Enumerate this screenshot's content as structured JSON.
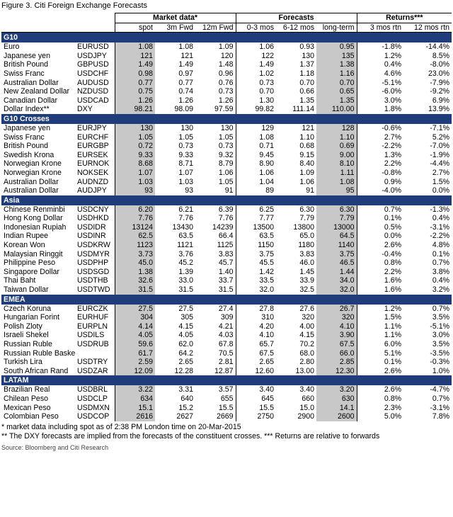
{
  "title": "Figure 3. Citi Foreign Exchange Forecasts",
  "header": {
    "groups": [
      "Market data*",
      "Forecasts",
      "Returns***"
    ],
    "columns": [
      "spot",
      "3m Fwd",
      "12m Fwd",
      "0-3 mos",
      "6-12 mos",
      "long-term",
      "3 mos rtn",
      "12 mos rtn"
    ]
  },
  "sections": [
    {
      "name": "G10",
      "rows": [
        [
          "Euro",
          "EURUSD",
          "1.08",
          "1.08",
          "1.09",
          "1.06",
          "0.93",
          "0.95",
          "-1.8%",
          "-14.4%"
        ],
        [
          "Japanese yen",
          "USDJPY",
          "121",
          "121",
          "120",
          "122",
          "130",
          "135",
          "1.2%",
          "8.5%"
        ],
        [
          "British Pound",
          "GBPUSD",
          "1.49",
          "1.49",
          "1.48",
          "1.49",
          "1.37",
          "1.38",
          "0.4%",
          "-8.0%"
        ],
        [
          "Swiss Franc",
          "USDCHF",
          "0.98",
          "0.97",
          "0.96",
          "1.02",
          "1.18",
          "1.16",
          "4.6%",
          "23.0%"
        ],
        [
          "Australian Dollar",
          "AUDUSD",
          "0.77",
          "0.77",
          "0.76",
          "0.73",
          "0.70",
          "0.70",
          "-5.1%",
          "-7.9%"
        ],
        [
          "New Zealand Dollar",
          "NZDUSD",
          "0.75",
          "0.74",
          "0.73",
          "0.70",
          "0.66",
          "0.65",
          "-6.0%",
          "-9.2%"
        ],
        [
          "Canadian Dollar",
          "USDCAD",
          "1.26",
          "1.26",
          "1.26",
          "1.30",
          "1.35",
          "1.35",
          "3.0%",
          "6.9%"
        ],
        [
          "Dollar Index**",
          "DXY",
          "98.21",
          "98.09",
          "97.59",
          "99.82",
          "111.14",
          "110.00",
          "1.8%",
          "13.9%"
        ]
      ]
    },
    {
      "name": "G10 Crosses",
      "rows": [
        [
          "Japanese yen",
          "EURJPY",
          "130",
          "130",
          "130",
          "129",
          "121",
          "128",
          "-0.6%",
          "-7.1%"
        ],
        [
          "Swiss Franc",
          "EURCHF",
          "1.05",
          "1.05",
          "1.05",
          "1.08",
          "1.10",
          "1.10",
          "2.7%",
          "5.2%"
        ],
        [
          "British Pound",
          "EURGBP",
          "0.72",
          "0.73",
          "0.73",
          "0.71",
          "0.68",
          "0.69",
          "-2.2%",
          "-7.0%"
        ],
        [
          "Swedish Krona",
          "EURSEK",
          "9.33",
          "9.33",
          "9.32",
          "9.45",
          "9.15",
          "9.00",
          "1.3%",
          "-1.9%"
        ],
        [
          "Norwegian Krone",
          "EURNOK",
          "8.68",
          "8.71",
          "8.79",
          "8.90",
          "8.40",
          "8.10",
          "2.2%",
          "-4.4%"
        ],
        [
          "Norwegian Krone",
          "NOKSEK",
          "1.07",
          "1.07",
          "1.06",
          "1.06",
          "1.09",
          "1.11",
          "-0.8%",
          "2.7%"
        ],
        [
          "Australian Dollar",
          "AUDNZD",
          "1.03",
          "1.03",
          "1.05",
          "1.04",
          "1.06",
          "1.08",
          "0.9%",
          "1.5%"
        ],
        [
          "Australian Dollar",
          "AUDJPY",
          "93",
          "93",
          "91",
          "89",
          "91",
          "95",
          "-4.0%",
          "0.0%"
        ]
      ]
    },
    {
      "name": "Asia",
      "rows": [
        [
          "Chinese Renminbi",
          "USDCNY",
          "6.20",
          "6.21",
          "6.39",
          "6.25",
          "6.30",
          "6.30",
          "0.7%",
          "-1.3%"
        ],
        [
          "Hong Kong Dollar",
          "USDHKD",
          "7.76",
          "7.76",
          "7.76",
          "7.77",
          "7.79",
          "7.79",
          "0.1%",
          "0.4%"
        ],
        [
          "Indonesian Rupiah",
          "USDIDR",
          "13124",
          "13430",
          "14239",
          "13500",
          "13800",
          "13000",
          "0.5%",
          "-3.1%"
        ],
        [
          "Indian Rupee",
          "USDINR",
          "62.5",
          "63.5",
          "66.4",
          "63.5",
          "65.0",
          "64.5",
          "0.0%",
          "-2.2%"
        ],
        [
          "Korean Won",
          "USDKRW",
          "1123",
          "1121",
          "1125",
          "1150",
          "1180",
          "1140",
          "2.6%",
          "4.8%"
        ],
        [
          "Malaysian Ringgit",
          "USDMYR",
          "3.73",
          "3.76",
          "3.83",
          "3.75",
          "3.83",
          "3.75",
          "-0.4%",
          "0.1%"
        ],
        [
          "Philippine Peso",
          "USDPHP",
          "45.0",
          "45.2",
          "45.7",
          "45.5",
          "46.0",
          "46.5",
          "0.8%",
          "0.7%"
        ],
        [
          "Singapore Dollar",
          "USDSGD",
          "1.38",
          "1.39",
          "1.40",
          "1.42",
          "1.45",
          "1.44",
          "2.2%",
          "3.8%"
        ],
        [
          "Thai Baht",
          "USDTHB",
          "32.6",
          "33.0",
          "33.7",
          "33.5",
          "33.9",
          "34.0",
          "1.6%",
          "0.4%"
        ],
        [
          "Taiwan Dollar",
          "USDTWD",
          "31.5",
          "31.5",
          "31.5",
          "32.0",
          "32.5",
          "32.0",
          "1.6%",
          "3.2%"
        ]
      ]
    },
    {
      "name": "EMEA",
      "rows": [
        [
          "Czech Koruna",
          "EURCZK",
          "27.5",
          "27.5",
          "27.4",
          "27.8",
          "27.6",
          "26.7",
          "1.2%",
          "0.7%"
        ],
        [
          "Hungarian Forint",
          "EURHUF",
          "304",
          "305",
          "309",
          "310",
          "320",
          "320",
          "1.5%",
          "3.5%"
        ],
        [
          "Polish Zloty",
          "EURPLN",
          "4.14",
          "4.15",
          "4.21",
          "4.20",
          "4.00",
          "4.10",
          "1.1%",
          "-5.1%"
        ],
        [
          "Israeli Shekel",
          "USDILS",
          "4.05",
          "4.05",
          "4.03",
          "4.10",
          "4.15",
          "3.90",
          "1.1%",
          "3.0%"
        ],
        [
          "Russian Ruble",
          "USDRUB",
          "59.6",
          "62.0",
          "67.8",
          "65.7",
          "70.2",
          "67.5",
          "6.0%",
          "3.5%"
        ],
        [
          "Russian Ruble Basket",
          "",
          "61.7",
          "64.2",
          "70.5",
          "67.5",
          "68.0",
          "66.0",
          "5.1%",
          "-3.5%"
        ],
        [
          "Turkish Lira",
          "USDTRY",
          "2.59",
          "2.65",
          "2.81",
          "2.65",
          "2.80",
          "2.85",
          "0.1%",
          "-0.3%"
        ],
        [
          "South African Rand",
          "USDZAR",
          "12.09",
          "12.28",
          "12.87",
          "12.60",
          "13.00",
          "12.30",
          "2.6%",
          "1.0%"
        ]
      ]
    },
    {
      "name": "LATAM",
      "rows": [
        [
          "Brazilian Real",
          "USDBRL",
          "3.22",
          "3.31",
          "3.57",
          "3.40",
          "3.40",
          "3.20",
          "2.6%",
          "-4.7%"
        ],
        [
          "Chilean Peso",
          "USDCLP",
          "634",
          "640",
          "655",
          "645",
          "660",
          "630",
          "0.8%",
          "0.7%"
        ],
        [
          "Mexican Peso",
          "USDMXN",
          "15.1",
          "15.2",
          "15.5",
          "15.5",
          "15.0",
          "14.1",
          "2.3%",
          "-3.1%"
        ],
        [
          "Colombian Peso",
          "USDCOP",
          "2616",
          "2627",
          "2669",
          "2750",
          "2900",
          "2600",
          "5.0%",
          "7.8%"
        ]
      ]
    }
  ],
  "notes": [
    "* market data including spot as of 2:38 PM London time on 20-Mar-2015",
    "** The DXY forecasts are implied from the forecasts of the constituent crosses. *** Returns are relative to forwards"
  ],
  "source": "Source: Bloomberg and Citi Research",
  "colors": {
    "section_header": "#1f3d7a",
    "shaded_column": "#c8c8c8"
  }
}
